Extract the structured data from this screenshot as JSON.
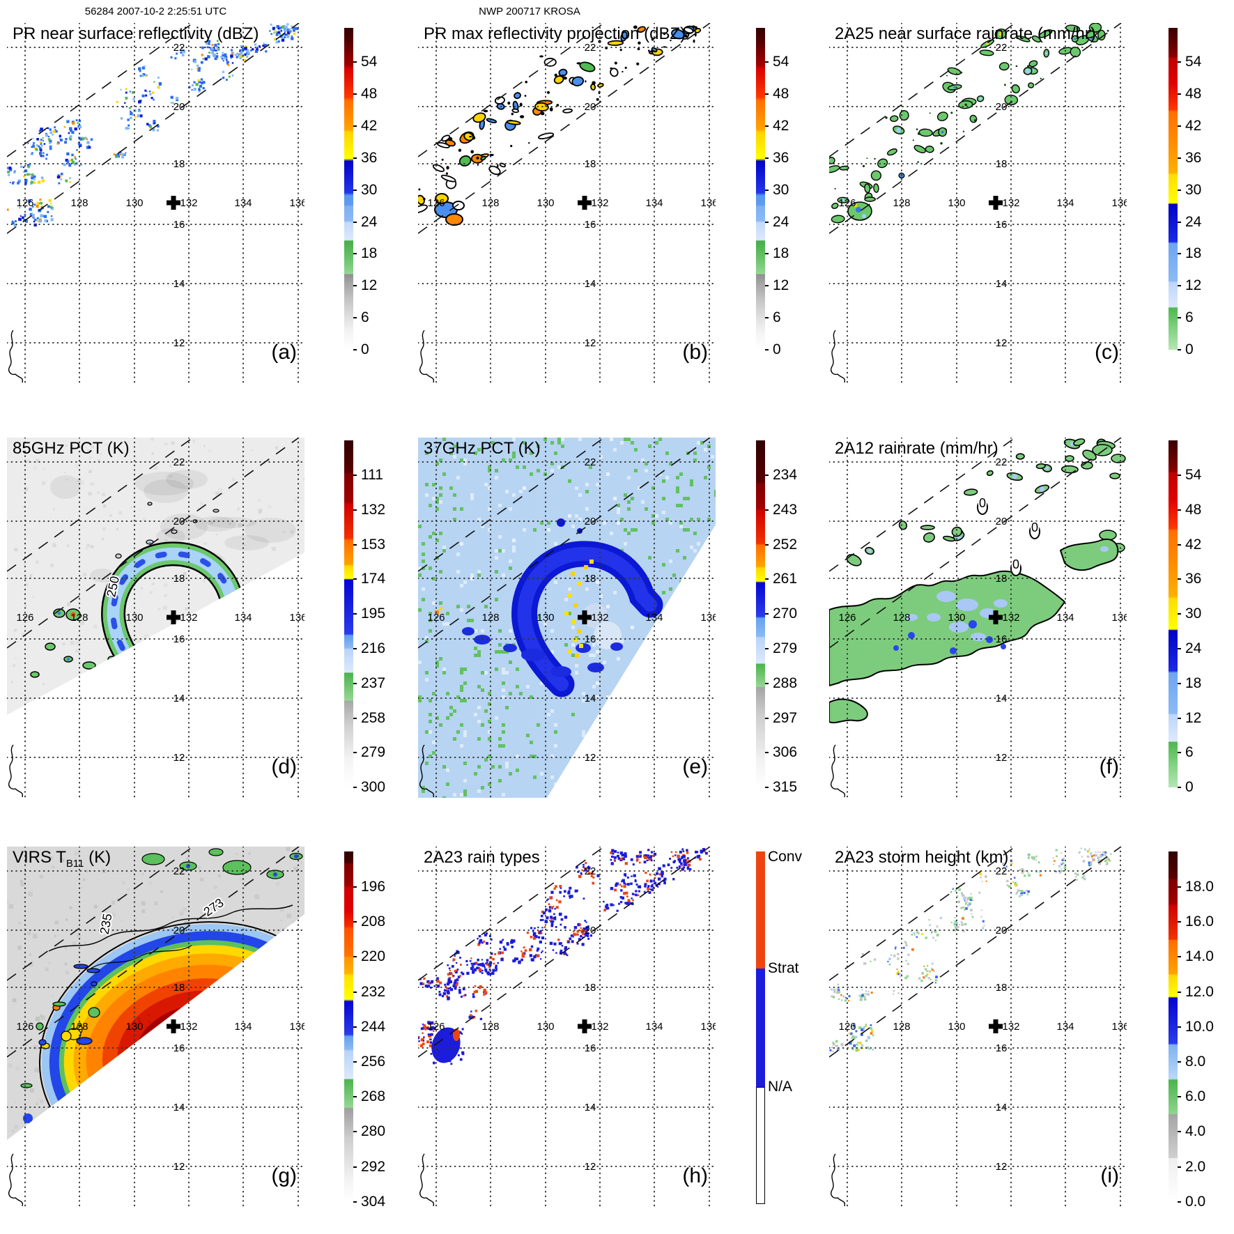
{
  "header": {
    "scan_id_time": "56284 2007-10-2 2:25:51 UTC",
    "storm_label": "NWP 200717 KROSA"
  },
  "axis": {
    "lon_ticks": [
      "126",
      "128",
      "130",
      "132",
      "134",
      "136"
    ],
    "lat_ticks": [
      "22",
      "20",
      "18",
      "16",
      "14",
      "12"
    ]
  },
  "colors": {
    "convective": "#ee4510",
    "stratiform": "#1c1cdc",
    "marker": "#000000",
    "land_contour": "#000000"
  },
  "panels": [
    {
      "letter": "(a)",
      "title": "PR near surface reflectivity (dBZ)",
      "colorbar": {
        "ticks": [
          "54",
          "48",
          "42",
          "36",
          "30",
          "24",
          "18",
          "12",
          "6",
          "0"
        ]
      }
    },
    {
      "letter": "(b)",
      "title": "PR max reflectivity projection (dBZ)",
      "colorbar": {
        "ticks": [
          "54",
          "48",
          "42",
          "36",
          "30",
          "24",
          "18",
          "12",
          "6",
          "0"
        ]
      }
    },
    {
      "letter": "(c)",
      "title": "2A25 near surface rainrate (mm/hr)",
      "colorbar": {
        "ticks": [
          "54",
          "48",
          "42",
          "36",
          "30",
          "24",
          "18",
          "12",
          "6",
          "0"
        ]
      }
    },
    {
      "letter": "(d)",
      "title": "85GHz PCT (K)",
      "colorbar": {
        "ticks": [
          "111",
          "132",
          "153",
          "174",
          "195",
          "216",
          "237",
          "258",
          "279",
          "300"
        ]
      },
      "contour_labels": [
        "250"
      ]
    },
    {
      "letter": "(e)",
      "title": "37GHz PCT (K)",
      "colorbar": {
        "ticks": [
          "234",
          "243",
          "252",
          "261",
          "270",
          "279",
          "288",
          "297",
          "306",
          "315"
        ]
      }
    },
    {
      "letter": "(f)",
      "title": "2A12 rainrate (mm/hr)",
      "colorbar": {
        "ticks": [
          "54",
          "48",
          "42",
          "36",
          "30",
          "24",
          "18",
          "12",
          "6",
          "0"
        ]
      },
      "contour_labels": [
        "0",
        "0",
        "0"
      ]
    },
    {
      "letter": "(g)",
      "title": "VIRS T",
      "title_sub": "B11",
      "title_post": " (K)",
      "colorbar": {
        "ticks": [
          "196",
          "208",
          "220",
          "232",
          "244",
          "256",
          "268",
          "280",
          "292",
          "304"
        ]
      },
      "contour_labels": [
        "273",
        "235"
      ]
    },
    {
      "letter": "(h)",
      "title": "2A23 rain types",
      "colorbar": {
        "legend": [
          "Conv",
          "Strat",
          "N/A"
        ]
      }
    },
    {
      "letter": "(i)",
      "title": "2A23 storm height (km)",
      "colorbar": {
        "ticks": [
          "18.0",
          "16.0",
          "14.0",
          "12.0",
          "10.0",
          "8.0",
          "6.0",
          "4.0",
          "2.0",
          "0.0"
        ]
      }
    }
  ],
  "chart_data": {
    "type": "heatmap",
    "description": "3x3 panel TRMM satellite overpass of typhoon KROSA (orbit 56284, 2007-10-2 2:25:51 UTC); each panel is a lon/lat map with its own colorbar",
    "lon_range": [
      125.3,
      136.2
    ],
    "lat_range": [
      10.7,
      22.8
    ],
    "lon_ticks": [
      126,
      128,
      130,
      132,
      134,
      136
    ],
    "lat_ticks": [
      22,
      20,
      18,
      16,
      14,
      12
    ],
    "grid_interval_deg": 2,
    "storm_center_lonlat": [
      131.4,
      16.7
    ],
    "panels": [
      {
        "panel": "a",
        "title": "PR near surface reflectivity (dBZ)",
        "units": "dBZ",
        "colorbar_ticks": [
          54,
          48,
          42,
          36,
          30,
          24,
          18,
          12,
          6,
          0
        ]
      },
      {
        "panel": "b",
        "title": "PR max reflectivity projection (dBZ)",
        "units": "dBZ",
        "colorbar_ticks": [
          54,
          48,
          42,
          36,
          30,
          24,
          18,
          12,
          6,
          0
        ]
      },
      {
        "panel": "c",
        "title": "2A25 near surface rainrate (mm/hr)",
        "units": "mm/hr",
        "colorbar_ticks": [
          54,
          48,
          42,
          36,
          30,
          24,
          18,
          12,
          6,
          0
        ]
      },
      {
        "panel": "d",
        "title": "85GHz PCT (K)",
        "units": "K",
        "colorbar_ticks": [
          111,
          132,
          153,
          174,
          195,
          216,
          237,
          258,
          279,
          300
        ],
        "contour_label_values": [
          250
        ]
      },
      {
        "panel": "e",
        "title": "37GHz PCT (K)",
        "units": "K",
        "colorbar_ticks": [
          234,
          243,
          252,
          261,
          270,
          279,
          288,
          297,
          306,
          315
        ]
      },
      {
        "panel": "f",
        "title": "2A12 rainrate (mm/hr)",
        "units": "mm/hr",
        "colorbar_ticks": [
          54,
          48,
          42,
          36,
          30,
          24,
          18,
          12,
          6,
          0
        ],
        "contour_label_values": [
          0,
          0,
          0
        ]
      },
      {
        "panel": "g",
        "title": "VIRS TB11 (K)",
        "units": "K",
        "colorbar_ticks": [
          196,
          208,
          220,
          232,
          244,
          256,
          268,
          280,
          292,
          304
        ],
        "contour_label_values": [
          273,
          235
        ]
      },
      {
        "panel": "h",
        "title": "2A23 rain types",
        "categories": [
          "Conv",
          "Strat",
          "N/A"
        ]
      },
      {
        "panel": "i",
        "title": "2A23 storm height (km)",
        "units": "km",
        "colorbar_ticks": [
          18.0,
          16.0,
          14.0,
          12.0,
          10.0,
          8.0,
          6.0,
          4.0,
          2.0,
          0.0
        ]
      }
    ]
  }
}
